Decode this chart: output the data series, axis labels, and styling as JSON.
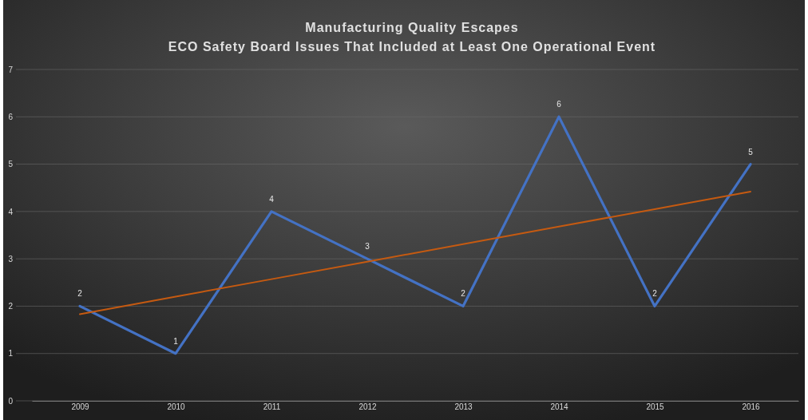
{
  "chart_data": {
    "type": "line",
    "title": "Manufacturing Quality Escapes",
    "subtitle": "ECO Safety Board Issues That Included at Least One Operational Event",
    "categories": [
      "2009",
      "2010",
      "2011",
      "2012",
      "2013",
      "2014",
      "2015",
      "2016"
    ],
    "series": [
      {
        "color": "#4472c4",
        "values": [
          2,
          1,
          4,
          3,
          2,
          6,
          2,
          5
        ],
        "value_labels": [
          "2",
          "1",
          "4",
          "3",
          "2",
          "6",
          "2",
          "5"
        ]
      },
      {
        "type": "line",
        "color": "#c55a11",
        "values": [
          1.83,
          2.2,
          2.57,
          2.94,
          3.31,
          3.68,
          4.05,
          4.42
        ]
      }
    ],
    "ylim": [
      0,
      7
    ],
    "yticks": [
      0,
      1,
      2,
      3,
      4,
      5,
      6,
      7
    ],
    "grid": "y",
    "line_style": "solid"
  }
}
